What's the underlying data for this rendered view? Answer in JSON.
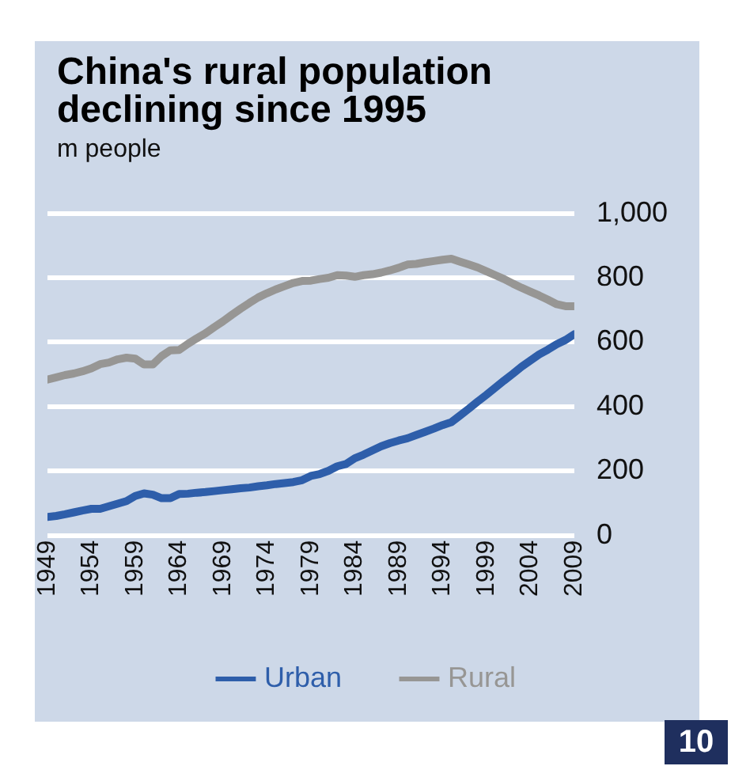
{
  "chart_data": {
    "type": "line",
    "title": "China's rural population declining since 1995",
    "subtitle": "m people",
    "x": [
      1949,
      1950,
      1951,
      1952,
      1953,
      1954,
      1955,
      1956,
      1957,
      1958,
      1959,
      1960,
      1961,
      1962,
      1963,
      1964,
      1965,
      1966,
      1967,
      1968,
      1969,
      1970,
      1971,
      1972,
      1973,
      1974,
      1975,
      1976,
      1977,
      1978,
      1979,
      1980,
      1981,
      1982,
      1983,
      1984,
      1985,
      1986,
      1987,
      1988,
      1989,
      1990,
      1991,
      1992,
      1993,
      1994,
      1995,
      1996,
      1997,
      1998,
      1999,
      2000,
      2001,
      2002,
      2003,
      2004,
      2005,
      2006,
      2007,
      2008,
      2009
    ],
    "series": [
      {
        "name": "Urban",
        "color": "#2e5eaa",
        "values": [
          58,
          61,
          66,
          72,
          78,
          83,
          83,
          91,
          99,
          107,
          123,
          131,
          127,
          116,
          116,
          129,
          130,
          133,
          135,
          138,
          141,
          144,
          147,
          149,
          153,
          156,
          160,
          163,
          166,
          172,
          185,
          191,
          201,
          215,
          222,
          240,
          251,
          264,
          277,
          287,
          295,
          302,
          312,
          322,
          332,
          343,
          352,
          373,
          394,
          416,
          437,
          459,
          481,
          502,
          524,
          543,
          562,
          577,
          594,
          607,
          625
        ]
      },
      {
        "name": "Rural",
        "color": "#979694",
        "values": [
          484,
          491,
          498,
          503,
          510,
          519,
          532,
          537,
          547,
          552,
          549,
          531,
          531,
          557,
          575,
          576,
          595,
          612,
          628,
          647,
          665,
          685,
          704,
          722,
          739,
          752,
          764,
          774,
          784,
          790,
          791,
          796,
          800,
          808,
          807,
          803,
          808,
          811,
          816,
          823,
          831,
          841,
          843,
          848,
          852,
          856,
          859,
          850,
          841,
          832,
          820,
          808,
          796,
          782,
          769,
          757,
          745,
          732,
          718,
          712,
          712
        ]
      }
    ],
    "xlim": [
      1949,
      2009
    ],
    "xticks": [
      1949,
      1954,
      1959,
      1964,
      1969,
      1974,
      1979,
      1984,
      1989,
      1994,
      1999,
      2004,
      2009
    ],
    "ylim": [
      0,
      1000
    ],
    "yticks": [
      0,
      200,
      400,
      600,
      800,
      {
        "value": 1000,
        "label": "1,000"
      }
    ],
    "grid": "y",
    "legend": "bottom",
    "marker": "none",
    "line_style": "solid",
    "annotations": [
      "10"
    ]
  }
}
